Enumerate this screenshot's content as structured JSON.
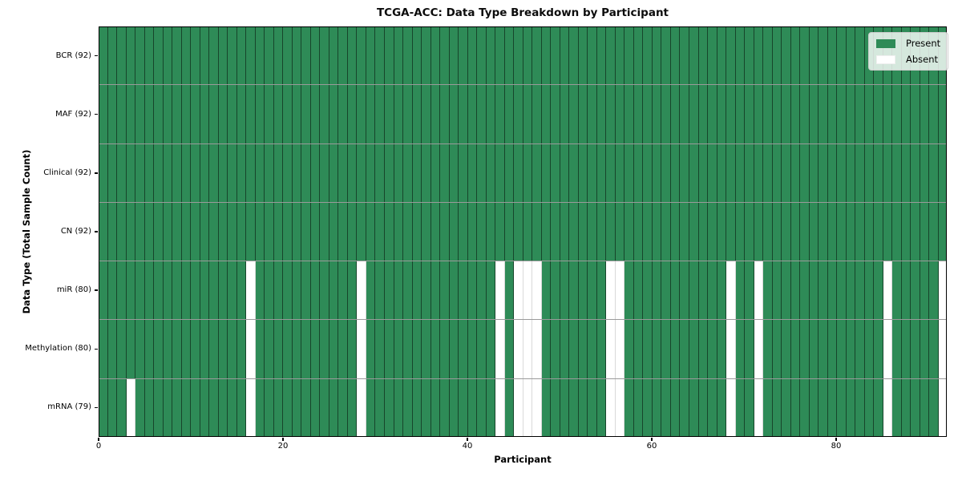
{
  "title": "TCGA-ACC: Data Type Breakdown by Participant",
  "axes": {
    "x_label": "Participant",
    "y_label": "Data Type (Total Sample Count)",
    "x_ticks": [
      "0",
      "20",
      "40",
      "60",
      "80"
    ]
  },
  "legend": {
    "present_label": "Present",
    "absent_label": "Absent"
  },
  "colors": {
    "present": "#2e8b57",
    "absent": "#ffffff",
    "spine": "#000000"
  },
  "chart_data": {
    "type": "heatmap",
    "title": "TCGA-ACC: Data Type Breakdown by Participant",
    "xlabel": "Participant",
    "ylabel": "Data Type (Total Sample Count)",
    "n_participants": 92,
    "x_range": [
      0,
      92
    ],
    "x_tick_values": [
      0,
      20,
      40,
      60,
      80
    ],
    "grid": "cell-borders",
    "legend_entries": [
      "Present",
      "Absent"
    ],
    "legend_position": "upper right",
    "cell_states": {
      "present": 1,
      "absent": 0
    },
    "rows": [
      {
        "label": "BCR (92)",
        "data_type": "BCR",
        "present_count": 92,
        "absent_participants": []
      },
      {
        "label": "MAF (92)",
        "data_type": "MAF",
        "present_count": 92,
        "absent_participants": []
      },
      {
        "label": "Clinical (92)",
        "data_type": "Clinical",
        "present_count": 92,
        "absent_participants": []
      },
      {
        "label": "CN (92)",
        "data_type": "CN",
        "present_count": 92,
        "absent_participants": []
      },
      {
        "label": "miR (80)",
        "data_type": "miR",
        "present_count": 80,
        "absent_participants": [
          16,
          28,
          43,
          45,
          46,
          47,
          55,
          56,
          68,
          71,
          85,
          91
        ]
      },
      {
        "label": "Methylation (80)",
        "data_type": "Methylation",
        "present_count": 80,
        "absent_participants": [
          16,
          28,
          43,
          45,
          46,
          47,
          55,
          56,
          68,
          71,
          85,
          91
        ]
      },
      {
        "label": "mRNA (79)",
        "data_type": "mRNA",
        "present_count": 79,
        "absent_participants": [
          3,
          16,
          28,
          43,
          45,
          46,
          47,
          55,
          56,
          68,
          71,
          85,
          91
        ]
      }
    ]
  }
}
